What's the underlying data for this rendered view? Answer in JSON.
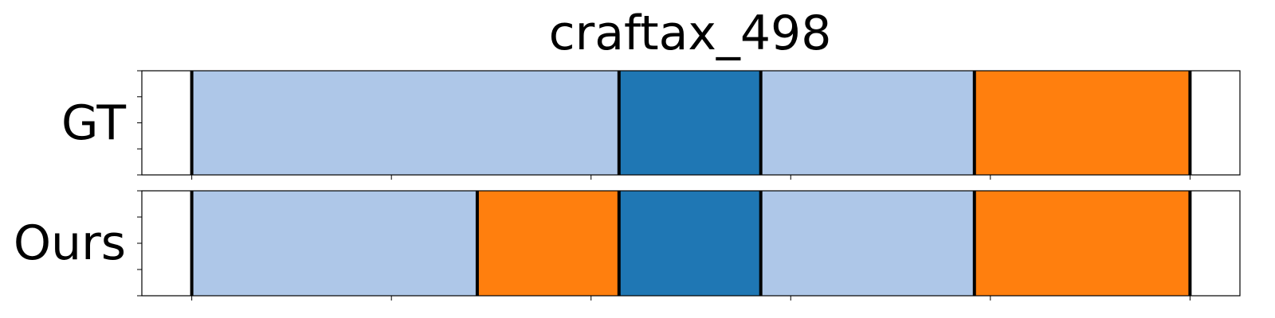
{
  "chart_data": {
    "type": "bar",
    "title": "craftax_498",
    "xlim": [
      -0.25,
      5.25
    ],
    "x_ticks": [
      0,
      1,
      2,
      3,
      4,
      5
    ],
    "grid": false,
    "colors": {
      "light_blue": "#aec7e8",
      "dark_blue": "#1f77b4",
      "orange": "#ff7f0e",
      "boundary": "#000000",
      "frame": "#000000"
    },
    "rows": [
      {
        "label": "GT",
        "boundaries": [
          0,
          2.14,
          2.85,
          3.92,
          5.0
        ],
        "segments": [
          {
            "start": 0,
            "end": 2.14,
            "color": "light_blue"
          },
          {
            "start": 2.14,
            "end": 2.85,
            "color": "dark_blue"
          },
          {
            "start": 2.85,
            "end": 3.92,
            "color": "light_blue"
          },
          {
            "start": 3.92,
            "end": 5.0,
            "color": "orange"
          }
        ]
      },
      {
        "label": "Ours",
        "boundaries": [
          0,
          1.43,
          2.14,
          2.85,
          3.92,
          5.0
        ],
        "segments": [
          {
            "start": 0,
            "end": 1.43,
            "color": "light_blue"
          },
          {
            "start": 1.43,
            "end": 2.14,
            "color": "orange"
          },
          {
            "start": 2.14,
            "end": 2.85,
            "color": "dark_blue"
          },
          {
            "start": 2.85,
            "end": 3.92,
            "color": "light_blue"
          },
          {
            "start": 3.92,
            "end": 5.0,
            "color": "orange"
          }
        ]
      }
    ]
  }
}
